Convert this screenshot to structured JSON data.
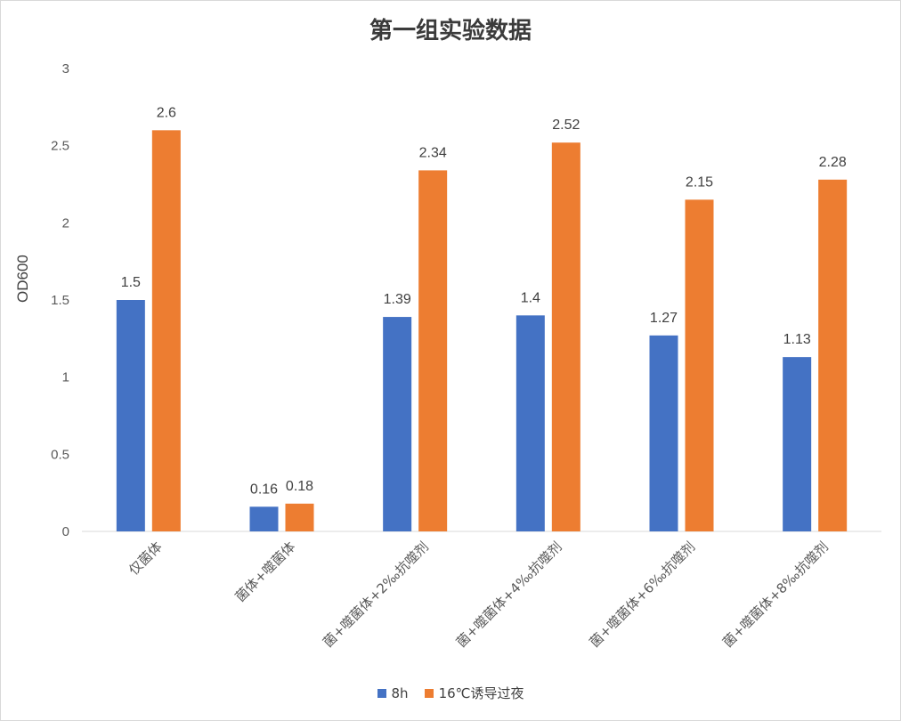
{
  "chart_data": {
    "type": "bar",
    "title": "第一组实验数据",
    "ylabel": "OD600",
    "xlabel": "",
    "ylim": [
      0,
      3
    ],
    "yticks": [
      "0",
      "0.5",
      "1",
      "1.5",
      "2",
      "2.5",
      "3"
    ],
    "grid": false,
    "legend_position": "bottom",
    "categories": [
      "仅菌体",
      "菌体+噬菌体",
      "菌+噬菌体+2‰抗噬剂",
      "菌+噬菌体+4‰抗噬剂",
      "菌+噬菌体+6‰抗噬剂",
      "菌+噬菌体+8‰抗噬剂"
    ],
    "series": [
      {
        "name": "8h",
        "color": "#4472c4",
        "values": [
          1.5,
          0.16,
          1.39,
          1.4,
          1.27,
          1.13
        ],
        "labels": [
          "1.5",
          "0.16",
          "1.39",
          "1.4",
          "1.27",
          "1.13"
        ]
      },
      {
        "name": "16℃诱导过夜",
        "color": "#ed7d31",
        "values": [
          2.6,
          0.18,
          2.34,
          2.52,
          2.15,
          2.28
        ],
        "labels": [
          "2.6",
          "0.18",
          "2.34",
          "2.52",
          "2.15",
          "2.28"
        ]
      }
    ]
  }
}
